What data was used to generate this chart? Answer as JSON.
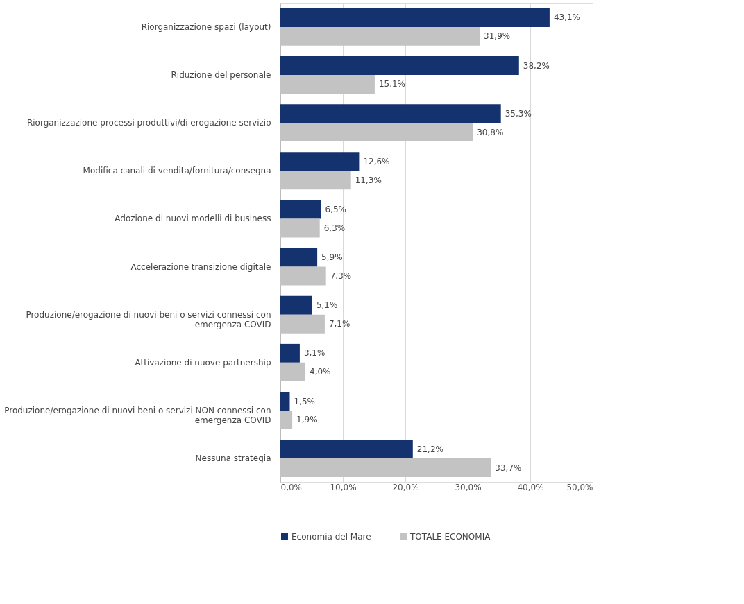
{
  "chart_data": {
    "type": "bar",
    "orientation": "horizontal",
    "categories": [
      "Riorganizzazione spazi (layout)",
      "Riduzione del personale",
      "Riorganizzazione processi produttivi/di erogazione servizio",
      "Modifica canali di vendita/fornitura/consegna",
      "Adozione di nuovi modelli di business",
      "Accelerazione transizione digitale",
      "Produzione/erogazione di nuovi beni o servizi connessi con\nemergenza COVID",
      "Attivazione di nuove partnership",
      "Produzione/erogazione di nuovi beni o servizi NON connessi con\nemergenza COVID",
      "Nessuna strategia"
    ],
    "series": [
      {
        "name": "Economia del Mare",
        "color": "#13326e",
        "values": [
          43.1,
          38.2,
          35.3,
          12.6,
          6.5,
          5.9,
          5.1,
          3.1,
          1.5,
          21.2
        ],
        "value_labels": [
          "43,1%",
          "38,2%",
          "35,3%",
          "12,6%",
          "6,5%",
          "5,9%",
          "5,1%",
          "3,1%",
          "1,5%",
          "21,2%"
        ]
      },
      {
        "name": "TOTALE ECONOMIA",
        "color": "#c3c3c3",
        "values": [
          31.9,
          15.1,
          30.8,
          11.3,
          6.3,
          7.3,
          7.1,
          4.0,
          1.9,
          33.7
        ],
        "value_labels": [
          "31,9%",
          "15,1%",
          "30,8%",
          "11,3%",
          "6,3%",
          "7,3%",
          "7,1%",
          "4,0%",
          "1,9%",
          "33,7%"
        ]
      }
    ],
    "xlim": [
      0,
      50
    ],
    "xticks": [
      {
        "value": 0,
        "label": "0,0%"
      },
      {
        "value": 10,
        "label": "10,0%"
      },
      {
        "value": 20,
        "label": "20,0%"
      },
      {
        "value": 30,
        "label": "30,0%"
      },
      {
        "value": 40,
        "label": "40,0%"
      },
      {
        "value": 50,
        "label": "50,0%"
      }
    ],
    "grid": "x",
    "legend": "bottom"
  }
}
